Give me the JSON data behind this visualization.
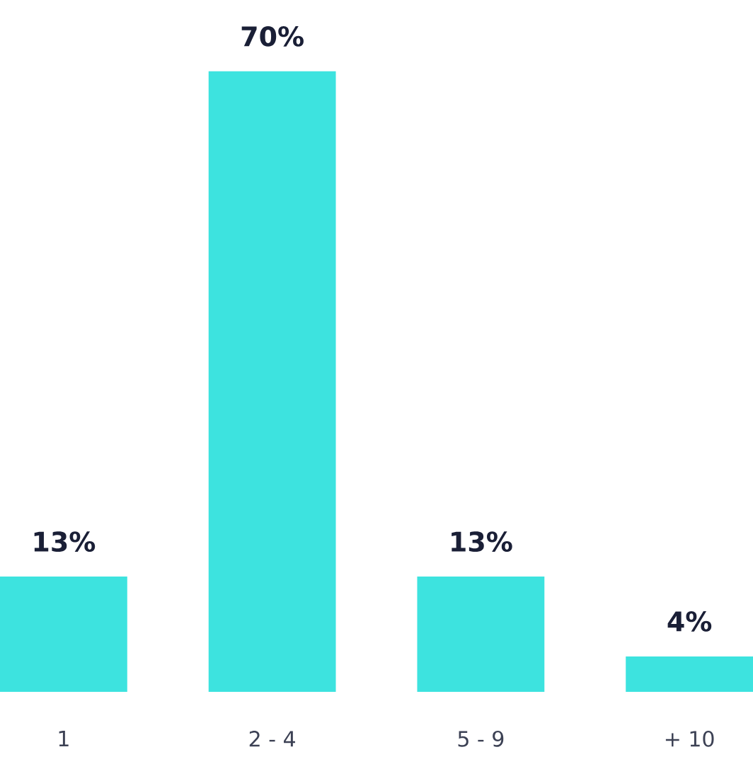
{
  "chart_data": {
    "type": "bar",
    "categories": [
      "1",
      "2 - 4",
      "5 - 9",
      "+ 10"
    ],
    "values": [
      13,
      70,
      13,
      4
    ],
    "value_labels": [
      "13%",
      "70%",
      "13%",
      "4%"
    ],
    "color": "#3de3df"
  }
}
